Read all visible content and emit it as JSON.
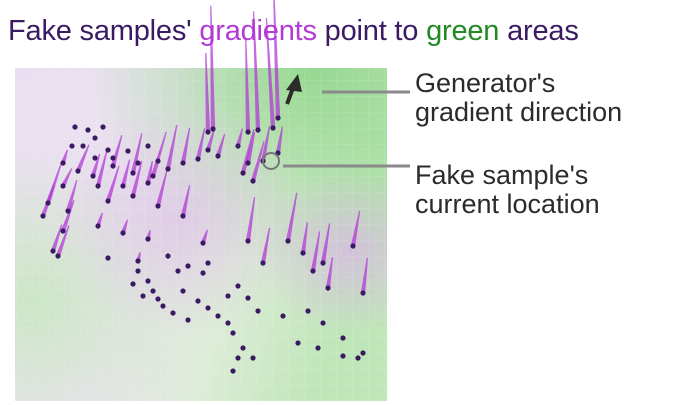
{
  "headline": {
    "part1": "Fake samples' ",
    "part2": "gradients",
    "part3": " point to ",
    "part4": "green",
    "part5": " areas"
  },
  "callouts": {
    "generator_line1": "Generator's",
    "generator_line2": "gradient direction",
    "fake_line1": "Fake sample's",
    "fake_line2": "current location"
  },
  "colors": {
    "headline_dark": "#3a1a63",
    "headline_purple": "#b23ad6",
    "headline_green": "#218a25",
    "gradient_line": "#b23ad6",
    "sample_point": "#3a1a63",
    "field_green": "#7fd07a",
    "field_purple": "#d7b8e0"
  },
  "samples": [
    [
      88,
      130,
      -2,
      0
    ],
    [
      103,
      127,
      -2,
      0
    ],
    [
      95,
      138,
      -2,
      0
    ],
    [
      75,
      127,
      -2,
      0
    ],
    [
      72,
      146,
      -2,
      0
    ],
    [
      83,
      146,
      -2,
      0
    ],
    [
      108,
      150,
      -2,
      0
    ],
    [
      95,
      158,
      -2,
      0
    ],
    [
      113,
      158,
      -2,
      0
    ],
    [
      128,
      151,
      -2,
      0
    ],
    [
      148,
      146,
      -2,
      0
    ],
    [
      138,
      163,
      -2,
      0
    ],
    [
      158,
      161,
      -2,
      0
    ],
    [
      208,
      132,
      1,
      36
    ],
    [
      213,
      129,
      1,
      56
    ],
    [
      248,
      132,
      1,
      42
    ],
    [
      258,
      130,
      2,
      54
    ],
    [
      273,
      128,
      3,
      50
    ],
    [
      278,
      118,
      2,
      60
    ],
    [
      208,
      150,
      -3,
      10
    ],
    [
      218,
      156,
      -3,
      10
    ],
    [
      238,
      146,
      -2,
      8
    ],
    [
      248,
      163,
      -3,
      14
    ],
    [
      263,
      161,
      -3,
      16
    ],
    [
      278,
      153,
      -2,
      12
    ],
    [
      63,
      163,
      -2,
      6
    ],
    [
      78,
      171,
      -5,
      12
    ],
    [
      93,
      176,
      -3,
      10
    ],
    [
      113,
      166,
      -4,
      14
    ],
    [
      133,
      173,
      -4,
      18
    ],
    [
      153,
      176,
      -6,
      20
    ],
    [
      168,
      169,
      -4,
      20
    ],
    [
      183,
      163,
      -3,
      16
    ],
    [
      198,
      159,
      -3,
      14
    ],
    [
      98,
      186,
      -4,
      16
    ],
    [
      123,
      186,
      -3,
      12
    ],
    [
      148,
      183,
      -2,
      10
    ],
    [
      63,
      186,
      -4,
      8
    ],
    [
      243,
      173,
      -5,
      20
    ],
    [
      253,
      181,
      -5,
      18
    ],
    [
      48,
      203,
      -6,
      18
    ],
    [
      68,
      211,
      -4,
      14
    ],
    [
      108,
      201,
      -5,
      16
    ],
    [
      133,
      196,
      -4,
      16
    ],
    [
      158,
      206,
      -4,
      16
    ],
    [
      183,
      216,
      -3,
      14
    ],
    [
      98,
      226,
      -2,
      6
    ],
    [
      123,
      233,
      -2,
      6
    ],
    [
      148,
      239,
      -1,
      4
    ],
    [
      63,
      231,
      -5,
      14
    ],
    [
      43,
      216,
      -5,
      14
    ],
    [
      58,
      256,
      -5,
      14
    ],
    [
      53,
      251,
      -4,
      12
    ],
    [
      203,
      243,
      -2,
      6
    ],
    [
      248,
      241,
      -3,
      20
    ],
    [
      288,
      241,
      -4,
      22
    ],
    [
      303,
      253,
      -2,
      14
    ],
    [
      323,
      263,
      -3,
      18
    ],
    [
      353,
      246,
      -3,
      16
    ],
    [
      263,
      263,
      -3,
      16
    ],
    [
      313,
      271,
      -3,
      18
    ],
    [
      328,
      288,
      -2,
      14
    ],
    [
      363,
      293,
      -2,
      16
    ],
    [
      138,
      261,
      -1,
      4
    ],
    [
      108,
      258,
      -1,
      2
    ],
    [
      168,
      256,
      -1,
      2
    ],
    [
      188,
      266,
      -1,
      2
    ],
    [
      203,
      273,
      -1,
      2
    ],
    [
      178,
      271,
      -1,
      2
    ],
    [
      148,
      281,
      -1,
      2
    ],
    [
      153,
      291,
      -1,
      2
    ],
    [
      163,
      306,
      -1,
      2
    ],
    [
      173,
      313,
      -1,
      2
    ],
    [
      188,
      320,
      -1,
      2
    ],
    [
      198,
      301,
      -1,
      2
    ],
    [
      208,
      308,
      -1,
      2
    ],
    [
      218,
      316,
      -1,
      2
    ],
    [
      228,
      296,
      -1,
      2
    ],
    [
      238,
      286,
      -1,
      2
    ],
    [
      248,
      298,
      -1,
      2
    ],
    [
      258,
      311,
      -1,
      2
    ],
    [
      228,
      323,
      -1,
      2
    ],
    [
      233,
      333,
      -1,
      2
    ],
    [
      243,
      348,
      -1,
      2
    ],
    [
      238,
      358,
      -1,
      2
    ],
    [
      253,
      358,
      -1,
      2
    ],
    [
      233,
      371,
      -1,
      2
    ],
    [
      283,
      316,
      -1,
      2
    ],
    [
      308,
      311,
      -1,
      2
    ],
    [
      323,
      323,
      -1,
      2
    ],
    [
      343,
      338,
      -1,
      2
    ],
    [
      298,
      343,
      -1,
      2
    ],
    [
      318,
      348,
      -1,
      2
    ],
    [
      343,
      356,
      -1,
      2
    ],
    [
      358,
      358,
      -1,
      2
    ],
    [
      363,
      353,
      -1,
      2
    ],
    [
      143,
      296,
      -1,
      2
    ],
    [
      158,
      299,
      -1,
      2
    ],
    [
      183,
      291,
      -1,
      2
    ],
    [
      208,
      263,
      -1,
      2
    ],
    [
      138,
      271,
      -1,
      2
    ],
    [
      133,
      284,
      -1,
      2
    ]
  ]
}
